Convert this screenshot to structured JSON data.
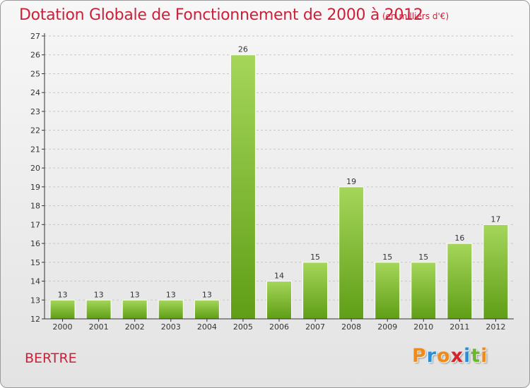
{
  "header": {
    "title": "Dotation Globale de Fonctionnement de 2000 à 2012",
    "unit": "(en milliers d'€)"
  },
  "footer": {
    "commune": "BERTRE",
    "logo_letters": [
      "P",
      "r",
      "o",
      "x",
      "i",
      "t",
      "i"
    ],
    "logo_colors": [
      "#f08a1a",
      "#2a8fd6",
      "#f08a1a",
      "#d6232a",
      "#2a8fd6",
      "#6ab82c",
      "#f08a1a"
    ]
  },
  "colors": {
    "title": "#cc1f3a",
    "bar_top": "#a5d65a",
    "bar_bottom": "#5f9e16",
    "axis": "#333333",
    "grid": "#c8c8c8"
  },
  "chart_data": {
    "type": "bar",
    "title": "Dotation Globale de Fonctionnement de 2000 à 2012",
    "xlabel": "",
    "ylabel": "",
    "categories": [
      "2000",
      "2001",
      "2002",
      "2003",
      "2004",
      "2005",
      "2006",
      "2007",
      "2008",
      "2009",
      "2010",
      "2011",
      "2012"
    ],
    "values": [
      13,
      13,
      13,
      13,
      13,
      26,
      14,
      15,
      19,
      15,
      15,
      16,
      17
    ],
    "ylim": [
      12,
      27
    ],
    "yticks": [
      12,
      13,
      14,
      15,
      16,
      17,
      18,
      19,
      20,
      21,
      22,
      23,
      24,
      25,
      26,
      27
    ],
    "grid": true
  }
}
